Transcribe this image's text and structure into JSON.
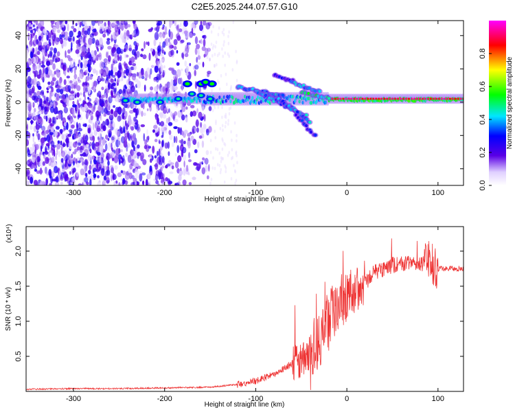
{
  "title": "C2E5.2025.244.07.57.G10",
  "chart_data": [
    {
      "type": "heatmap",
      "xlabel": "Height of straight line (km)",
      "ylabel": "Frequency (Hz)",
      "xlim": [
        -352,
        128
      ],
      "ylim": [
        -50,
        49
      ],
      "x_ticks": [
        -300,
        -200,
        -100,
        0,
        100
      ],
      "y_ticks": [
        -40,
        -20,
        0,
        20,
        40
      ],
      "colorbar": {
        "label": "Normalized spectral amplitude",
        "range": [
          0,
          1
        ],
        "ticks": [
          "0.0",
          "0.2",
          "0.4",
          "0.6",
          "0.8"
        ],
        "colors": [
          "#ffffff",
          "#5a00e6",
          "#0000ff",
          "#00e6ff",
          "#00ff00",
          "#ffff00",
          "#ff0000",
          "#ff00ff"
        ]
      },
      "features": [
        {
          "desc": "noise",
          "x": [
            -352,
            -155
          ],
          "amplitude": 0.2
        },
        {
          "desc": "signal",
          "x": [
            -245,
            128
          ],
          "frequency": [
            0,
            3
          ],
          "amplitude": [
            0.3,
            0.9
          ]
        },
        {
          "desc": "branch",
          "x": [
            -100,
            -30
          ],
          "frequency": [
            -20,
            15
          ],
          "amplitude": 0.4
        }
      ]
    },
    {
      "type": "line",
      "xlabel": "Height of straight line (km)",
      "ylabel": "SNR (10 * v/v)",
      "y_multiplier": "(x10⁴)",
      "xlim": [
        -352,
        128
      ],
      "ylim": [
        0,
        2.35
      ],
      "x_ticks": [
        -300,
        -200,
        -100,
        0,
        100
      ],
      "y_ticks": [
        "0.5",
        "1.0",
        "1.5",
        "2.0"
      ],
      "series": [
        {
          "color": "#ee3333",
          "x": [
            -352,
            -300,
            -250,
            -200,
            -150,
            -120,
            -100,
            -80,
            -60,
            -50,
            -40,
            -30,
            -20,
            -10,
            0,
            10,
            20,
            30,
            40,
            50,
            60,
            70,
            80,
            90,
            100,
            110,
            120,
            128
          ],
          "y": [
            0.03,
            0.04,
            0.04,
            0.05,
            0.06,
            0.1,
            0.15,
            0.25,
            0.4,
            0.45,
            0.55,
            0.8,
            1.0,
            1.2,
            1.35,
            1.45,
            1.55,
            1.7,
            1.75,
            1.8,
            1.8,
            1.82,
            1.82,
            1.85,
            1.75,
            1.75,
            1.75,
            1.75
          ]
        }
      ]
    }
  ]
}
